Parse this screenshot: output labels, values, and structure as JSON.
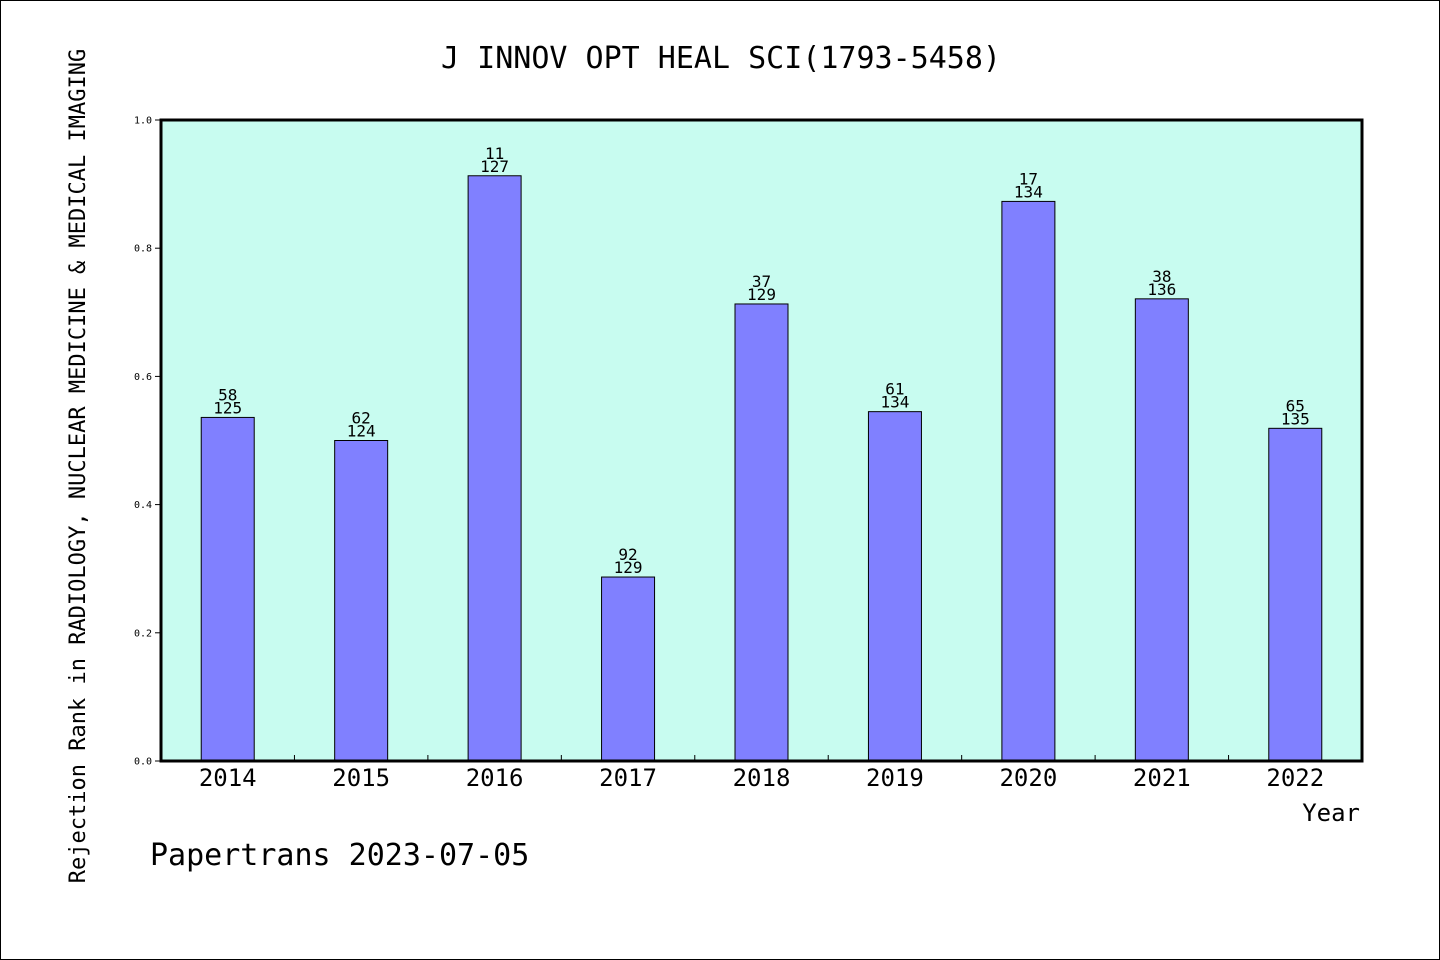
{
  "chart_data": {
    "type": "bar",
    "title": "J INNOV OPT HEAL SCI(1793-5458)",
    "xlabel": "Year",
    "ylabel": "Rejection Rank in RADIOLOGY, NUCLEAR MEDICINE & MEDICAL IMAGING",
    "footer": "Papertrans 2023-07-05",
    "ylim": [
      0,
      1.0
    ],
    "yticks": [
      "0.0",
      "0.2",
      "0.4",
      "0.6",
      "0.8",
      "1.0"
    ],
    "categories": [
      "2014",
      "2015",
      "2016",
      "2017",
      "2018",
      "2019",
      "2020",
      "2021",
      "2022"
    ],
    "values": [
      0.536,
      0.5,
      0.913,
      0.287,
      0.713,
      0.545,
      0.873,
      0.721,
      0.519
    ],
    "ranks": [
      "58",
      "62",
      "11",
      "92",
      "37",
      "61",
      "17",
      "38",
      "65"
    ],
    "totals": [
      "125",
      "124",
      "127",
      "129",
      "129",
      "134",
      "134",
      "136",
      "135"
    ],
    "grid": false,
    "legend": "none",
    "colors": {
      "bar_fill": "#8080ff",
      "plot_background": "#c8fcf0",
      "axis": "#000000"
    }
  }
}
